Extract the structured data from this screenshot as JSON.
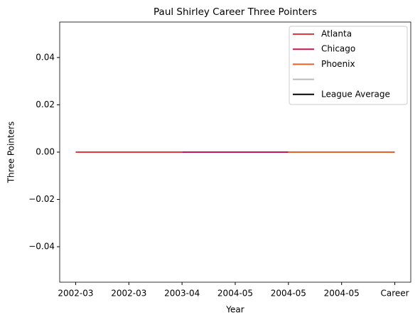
{
  "chart_data": {
    "type": "line",
    "title": "Paul Shirley Career Three Pointers",
    "xlabel": "Year",
    "ylabel": "Three Pointers",
    "categories": [
      "2002-03",
      "2002-03",
      "2003-04",
      "2004-05",
      "2004-05",
      "2004-05",
      "Career"
    ],
    "series": [
      {
        "name": "Atlanta",
        "color": "#e03a3e",
        "values": [
          0,
          0,
          0,
          null,
          null,
          null,
          null
        ]
      },
      {
        "name": "Chicago",
        "color": "#c8174f",
        "values": [
          null,
          null,
          0,
          0,
          0,
          null,
          null
        ]
      },
      {
        "name": "Phoenix",
        "color": "#e5632a",
        "values": [
          null,
          null,
          null,
          null,
          0,
          0,
          0
        ]
      },
      {
        "color": "#bbbbbb",
        "values": [
          null,
          null,
          null,
          null,
          null,
          null,
          null
        ]
      },
      {
        "name": "League Average",
        "color": "#000000",
        "values": [
          null,
          null,
          null,
          null,
          null,
          null,
          null
        ]
      }
    ],
    "ylim": [
      -0.055,
      0.055
    ],
    "yticks": [
      {
        "value": -0.04,
        "label": "−0.04"
      },
      {
        "value": -0.02,
        "label": "−0.02"
      },
      {
        "value": 0,
        "label": "0.00"
      },
      {
        "value": 0.02,
        "label": "0.02"
      },
      {
        "value": 0.04,
        "label": "0.04"
      }
    ],
    "legend": "upper right"
  }
}
